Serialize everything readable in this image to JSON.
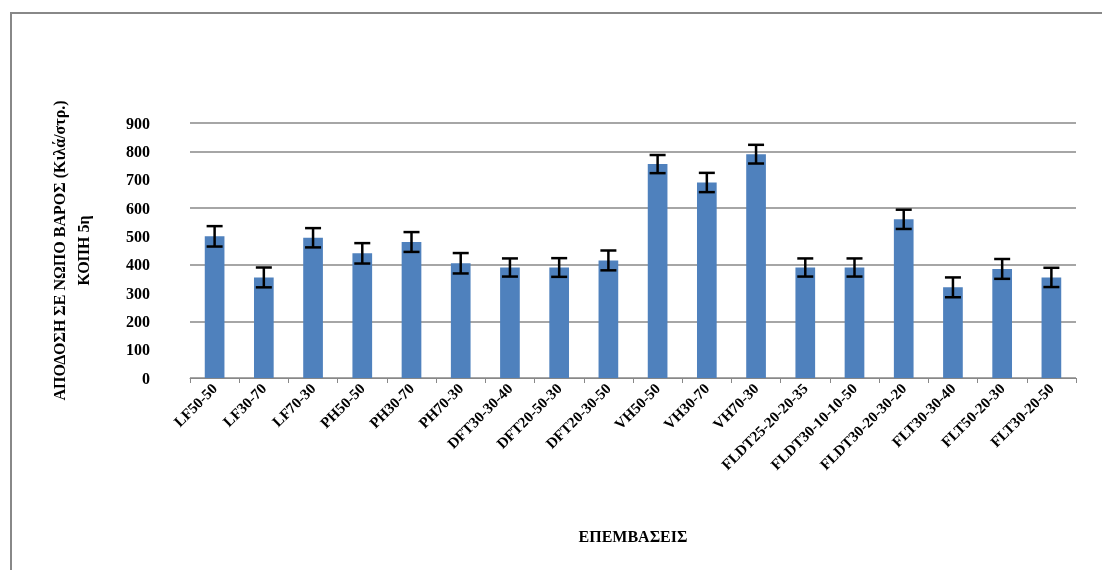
{
  "chart_data": {
    "type": "bar",
    "xlabel": "ΕΠΕΜΒΑΣΕΙΣ",
    "ylabel": "ΑΠΟΔΟΣΗ ΣΕ ΝΩΠΟ ΒΑΡΟΣ (Κιλά/στρ.)\nΚΟΠΗ 5η",
    "categories": [
      "LF50-50",
      "LF30-70",
      "LF70-30",
      "PH50-50",
      "PH30-70",
      "PH70-30",
      "DFT30-30-40",
      "DFT20-50-30",
      "DFT20-30-50",
      "VH50-50",
      "VH30-70",
      "VH70-30",
      "FLDT25-20-20-35",
      "FLDT30-10-10-50",
      "FLDT30-20-30-20",
      "FLT30-30-40",
      "FLT50-20-30",
      "FLT30-20-50"
    ],
    "values": [
      500,
      355,
      495,
      440,
      480,
      405,
      390,
      390,
      415,
      755,
      690,
      790,
      390,
      390,
      560,
      320,
      385,
      355
    ],
    "errors": [
      36,
      35,
      34,
      36,
      35,
      36,
      32,
      33,
      35,
      32,
      34,
      33,
      32,
      32,
      34,
      35,
      35,
      34
    ],
    "color": "#4f81bd",
    "ylim": [
      0,
      900
    ],
    "yticks": [
      0,
      100,
      200,
      300,
      400,
      500,
      600,
      700,
      800,
      900
    ],
    "grid": "y"
  }
}
